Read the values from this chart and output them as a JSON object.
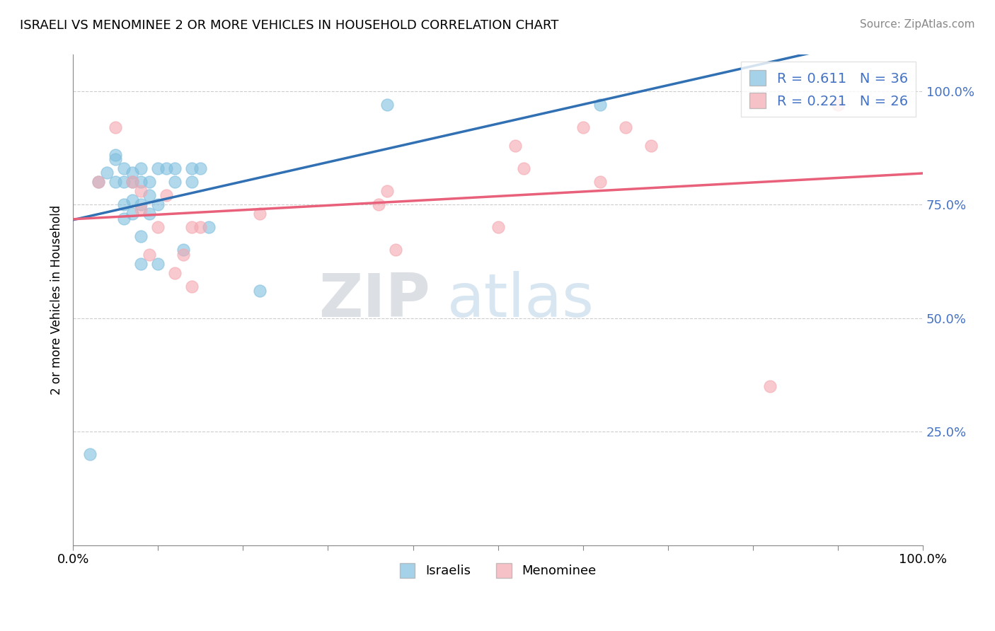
{
  "title": "ISRAELI VS MENOMINEE 2 OR MORE VEHICLES IN HOUSEHOLD CORRELATION CHART",
  "source": "Source: ZipAtlas.com",
  "ylabel": "2 or more Vehicles in Household",
  "xlim": [
    0.0,
    1.0
  ],
  "ylim": [
    0.0,
    1.08
  ],
  "ytick_vals": [
    0.0,
    0.25,
    0.5,
    0.75,
    1.0
  ],
  "ytick_labels": [
    "",
    "25.0%",
    "50.0%",
    "75.0%",
    "100.0%"
  ],
  "xtick_vals": [
    0.0,
    0.1,
    0.2,
    0.3,
    0.4,
    0.5,
    0.6,
    0.7,
    0.8,
    0.9,
    1.0
  ],
  "xtick_labels": [
    "0.0%",
    "",
    "",
    "",
    "",
    "",
    "",
    "",
    "",
    "",
    "100.0%"
  ],
  "israeli_color": "#7fbfdf",
  "menominee_color": "#f4a8b0",
  "trendline_israeli_color": "#3070b3",
  "trendline_menominee_color": "#e8607a",
  "legend_R_israeli": "R = 0.611",
  "legend_N_israeli": "N = 36",
  "legend_R_menominee": "R = 0.221",
  "legend_N_menominee": "N = 26",
  "watermark_zip": "ZIP",
  "watermark_atlas": "atlas",
  "israeli_x": [
    0.02,
    0.03,
    0.04,
    0.05,
    0.05,
    0.05,
    0.06,
    0.06,
    0.06,
    0.06,
    0.07,
    0.07,
    0.07,
    0.07,
    0.08,
    0.08,
    0.08,
    0.08,
    0.08,
    0.09,
    0.09,
    0.09,
    0.1,
    0.1,
    0.1,
    0.11,
    0.12,
    0.12,
    0.13,
    0.14,
    0.14,
    0.15,
    0.16,
    0.22,
    0.37,
    0.62
  ],
  "israeli_y": [
    0.2,
    0.8,
    0.82,
    0.8,
    0.85,
    0.86,
    0.72,
    0.75,
    0.8,
    0.83,
    0.73,
    0.76,
    0.8,
    0.82,
    0.62,
    0.68,
    0.75,
    0.8,
    0.83,
    0.73,
    0.77,
    0.8,
    0.62,
    0.75,
    0.83,
    0.83,
    0.8,
    0.83,
    0.65,
    0.8,
    0.83,
    0.83,
    0.7,
    0.56,
    0.97,
    0.97
  ],
  "menominee_x": [
    0.03,
    0.05,
    0.07,
    0.08,
    0.08,
    0.09,
    0.1,
    0.11,
    0.12,
    0.13,
    0.14,
    0.14,
    0.15,
    0.22,
    0.36,
    0.37,
    0.38,
    0.5,
    0.52,
    0.53,
    0.6,
    0.62,
    0.65,
    0.68,
    0.82,
    0.9
  ],
  "menominee_y": [
    0.8,
    0.92,
    0.8,
    0.74,
    0.78,
    0.64,
    0.7,
    0.77,
    0.6,
    0.64,
    0.7,
    0.57,
    0.7,
    0.73,
    0.75,
    0.78,
    0.65,
    0.7,
    0.88,
    0.83,
    0.92,
    0.8,
    0.92,
    0.88,
    0.35,
    0.97
  ]
}
